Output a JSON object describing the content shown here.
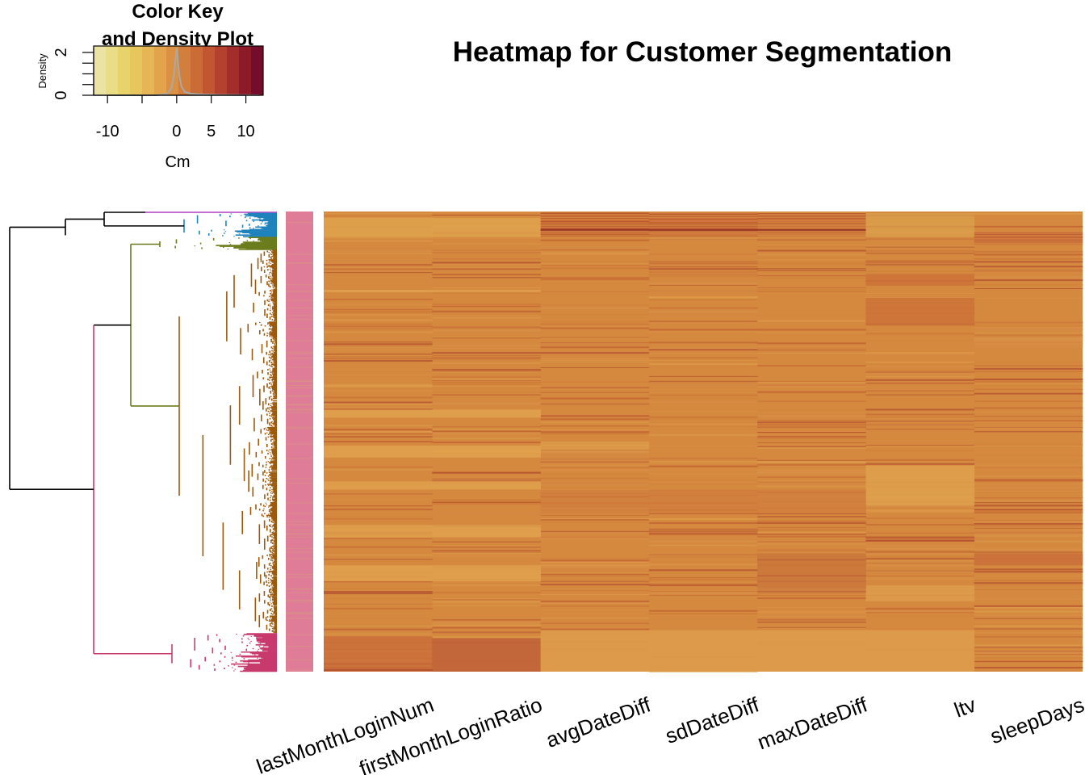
{
  "chart_data": {
    "type": "heatmap",
    "title": "Heatmap for Customer Segmentation",
    "columns": [
      "lastMonthLoginNum",
      "firstMonthLoginRatio",
      "avgDateDiff",
      "sdDateDiff",
      "maxDateDiff",
      "ltv",
      "sleepDays"
    ],
    "color_key": {
      "title_line1": "Color Key",
      "title_line2": "and Density Plot",
      "xlabel": "Cm",
      "ylabel": "Density",
      "x_ticks": [
        -10,
        0,
        5,
        10
      ],
      "x_tick_marks": [
        -10,
        -5,
        0,
        5,
        10
      ],
      "x_range": [
        -12,
        12.5
      ],
      "y_ticks": [
        0,
        2
      ],
      "y_range": [
        0,
        2.3
      ],
      "colors": [
        "#ebe3a2",
        "#e9dd86",
        "#e8d36b",
        "#e7c65e",
        "#e6b656",
        "#e3a24c",
        "#da9143",
        "#d27e3c",
        "#cb6b36",
        "#c15631",
        "#b4402e",
        "#a22d2b",
        "#8c1b27",
        "#730d2b"
      ],
      "density": [
        [
          -12,
          0
        ],
        [
          -3,
          0
        ],
        [
          -1.5,
          0.05
        ],
        [
          -0.8,
          0.3
        ],
        [
          -0.4,
          0.9
        ],
        [
          -0.2,
          1.6
        ],
        [
          0,
          2.2
        ],
        [
          0.2,
          1.5
        ],
        [
          0.4,
          0.9
        ],
        [
          0.7,
          0.4
        ],
        [
          1.2,
          0.15
        ],
        [
          2,
          0.08
        ],
        [
          3,
          0.05
        ],
        [
          4,
          0.04
        ],
        [
          6,
          0.02
        ],
        [
          12,
          0
        ]
      ]
    },
    "row_clusters": [
      {
        "name": "cluster-purple",
        "color": "#b03fc4",
        "rows": 2
      },
      {
        "name": "cluster-blue",
        "color": "#1f83bd",
        "rows": 30
      },
      {
        "name": "cluster-olive",
        "color": "#6b7c1c",
        "rows": 16
      },
      {
        "name": "cluster-brown",
        "color": "#9e5a0c",
        "rows": 480
      },
      {
        "name": "cluster-pink",
        "color": "#c93b6d",
        "rows": 48
      }
    ],
    "row_side_color": "#df7c98",
    "base_cell_color": "#d5893f",
    "dendrogram_line_color": "#000000"
  }
}
